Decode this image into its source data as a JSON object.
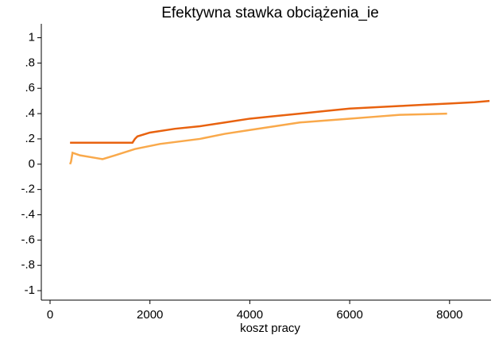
{
  "chart_data": {
    "type": "line",
    "title": "Efektywna stawka obciążenia_ie",
    "xlabel": "koszt pracy",
    "series": [
      {
        "color": "#e8620f",
        "x": [
          400,
          1650,
          1700,
          1750,
          2000,
          2500,
          3000,
          3500,
          4000,
          4500,
          5000,
          5500,
          6000,
          6500,
          7000,
          7500,
          8000,
          8500,
          8800
        ],
        "values": [
          0.17,
          0.17,
          0.2,
          0.22,
          0.25,
          0.28,
          0.3,
          0.33,
          0.36,
          0.38,
          0.4,
          0.42,
          0.44,
          0.45,
          0.46,
          0.47,
          0.48,
          0.49,
          0.5
        ]
      },
      {
        "color": "#f9a94b",
        "x": [
          400,
          420,
          450,
          600,
          900,
          1050,
          1300,
          1700,
          2200,
          3000,
          3500,
          4000,
          4500,
          5000,
          5500,
          6000,
          6500,
          7000,
          7500,
          7950
        ],
        "values": [
          0,
          0.02,
          0.09,
          0.07,
          0.05,
          0.04,
          0.07,
          0.12,
          0.16,
          0.2,
          0.24,
          0.27,
          0.3,
          0.33,
          0.345,
          0.36,
          0.375,
          0.39,
          0.395,
          0.4
        ]
      }
    ],
    "xlim": [
      -175,
      8830
    ],
    "xticks": [
      0,
      2000,
      4000,
      6000,
      8000
    ],
    "ylim": [
      -1.075,
      1.11
    ],
    "yticks": [
      1,
      {
        "value": 0.8,
        "label": ".8"
      },
      {
        "value": 0.6,
        "label": ".6"
      },
      {
        "value": 0.4,
        "label": ".4"
      },
      {
        "value": 0.2,
        "label": ".2"
      },
      0,
      {
        "value": -0.2,
        "label": "-.2"
      },
      {
        "value": -0.4,
        "label": "-.4"
      },
      {
        "value": -0.6,
        "label": "-.6"
      },
      {
        "value": -0.8,
        "label": "-.8"
      },
      -1
    ]
  }
}
